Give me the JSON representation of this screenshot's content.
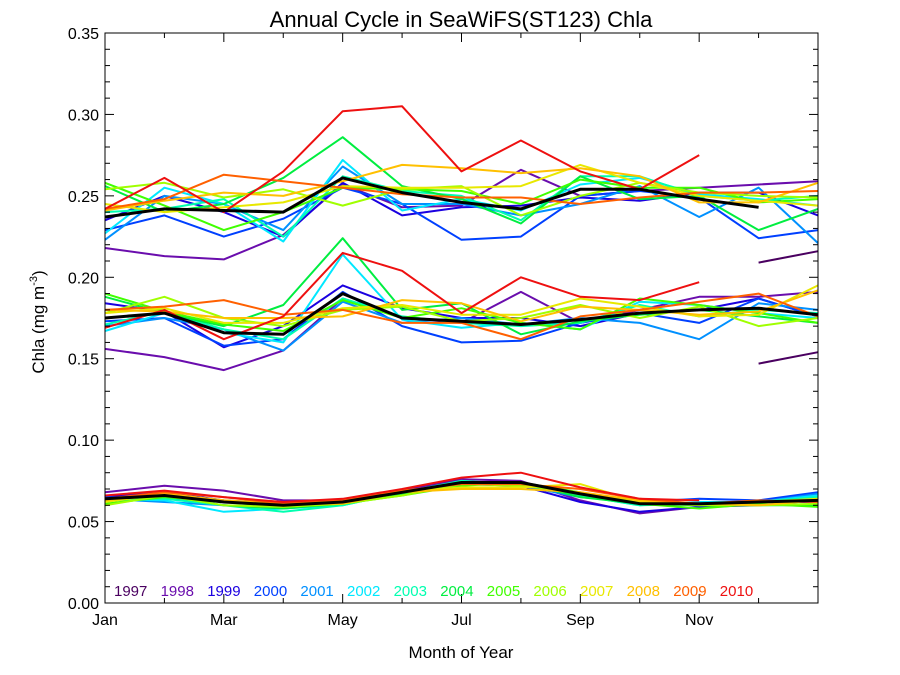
{
  "chart_data": {
    "type": "line",
    "title": "Annual Cycle in SeaWiFS(ST123) Chla",
    "xlabel": "Month of Year",
    "ylabel_main": "Chla (mg m",
    "ylabel_sup": "-3",
    "ylabel_close": ")",
    "xlim": [
      1,
      13
    ],
    "ylim": [
      0,
      0.35
    ],
    "xtick_values": [
      1,
      3,
      5,
      7,
      9,
      11
    ],
    "xtick_labels": [
      "Jan",
      "Mar",
      "May",
      "Jul",
      "Sep",
      "Nov"
    ],
    "ytick_values": [
      0,
      0.05,
      0.1,
      0.15,
      0.2,
      0.25,
      0.3,
      0.35
    ],
    "ytick_labels": [
      "0.00",
      "0.05",
      "0.10",
      "0.15",
      "0.20",
      "0.25",
      "0.30",
      "0.35"
    ],
    "grid": false,
    "legend_position": "bottom",
    "series": [
      {
        "name": "1997",
        "color": "#4a0060",
        "groups": [
          [
            null,
            null,
            null,
            null,
            null,
            null,
            null,
            null,
            null,
            null,
            null,
            0.209,
            0.216
          ],
          [
            null,
            null,
            null,
            null,
            null,
            null,
            null,
            null,
            null,
            null,
            null,
            0.147,
            0.154
          ],
          [
            null,
            null,
            null,
            null,
            null,
            null,
            null,
            null,
            null,
            null,
            null,
            0.063,
            0.063
          ]
        ]
      },
      {
        "name": "1998",
        "color": "#6a0dad",
        "groups": [
          [
            0.218,
            0.213,
            0.211,
            0.226,
            0.257,
            0.243,
            0.244,
            0.266,
            0.25,
            0.253,
            0.255,
            0.257,
            0.259
          ],
          [
            0.156,
            0.151,
            0.143,
            0.155,
            0.187,
            0.175,
            0.172,
            0.191,
            0.172,
            0.18,
            0.188,
            0.188,
            0.191
          ],
          [
            0.068,
            0.072,
            0.069,
            0.063,
            0.063,
            0.069,
            0.076,
            0.075,
            0.063,
            0.055,
            0.059,
            0.062,
            0.062
          ]
        ]
      },
      {
        "name": "1999",
        "color": "#1a00e0",
        "groups": [
          [
            0.235,
            0.25,
            0.24,
            0.225,
            0.258,
            0.238,
            0.243,
            0.244,
            0.249,
            0.247,
            0.252,
            0.252,
            0.238
          ],
          [
            0.184,
            0.179,
            0.157,
            0.17,
            0.195,
            0.181,
            0.175,
            0.175,
            0.17,
            0.178,
            0.18,
            0.187,
            0.176
          ],
          [
            0.065,
            0.068,
            0.063,
            0.06,
            0.063,
            0.068,
            0.073,
            0.072,
            0.062,
            0.056,
            0.059,
            0.06,
            0.063
          ]
        ]
      },
      {
        "name": "2000",
        "color": "#0040ff",
        "groups": [
          [
            0.229,
            0.238,
            0.225,
            0.236,
            0.255,
            0.245,
            0.223,
            0.225,
            0.25,
            0.253,
            0.249,
            0.224,
            0.229
          ],
          [
            0.173,
            0.175,
            0.158,
            0.162,
            0.191,
            0.17,
            0.16,
            0.161,
            0.172,
            0.178,
            0.172,
            0.187,
            0.176
          ],
          [
            0.065,
            0.064,
            0.063,
            0.061,
            0.062,
            0.068,
            0.075,
            0.072,
            0.066,
            0.062,
            0.064,
            0.063,
            0.068
          ]
        ]
      },
      {
        "name": "2001",
        "color": "#0090ff",
        "groups": [
          [
            0.223,
            0.25,
            0.245,
            0.229,
            0.268,
            0.245,
            0.245,
            0.238,
            0.245,
            0.256,
            0.237,
            0.255,
            0.221
          ],
          [
            0.17,
            0.175,
            0.168,
            0.155,
            0.185,
            0.172,
            0.175,
            0.171,
            0.175,
            0.172,
            0.162,
            0.184,
            0.18
          ],
          [
            0.064,
            0.062,
            0.06,
            0.058,
            0.061,
            0.068,
            0.074,
            0.072,
            0.065,
            0.062,
            0.06,
            0.062,
            0.067
          ]
        ]
      },
      {
        "name": "2002",
        "color": "#00e8ff",
        "groups": [
          [
            0.227,
            0.255,
            0.245,
            0.222,
            0.272,
            0.241,
            0.248,
            0.241,
            0.257,
            0.261,
            0.251,
            0.248,
            0.244
          ],
          [
            0.167,
            0.178,
            0.166,
            0.16,
            0.214,
            0.174,
            0.169,
            0.172,
            0.168,
            0.185,
            0.183,
            0.178,
            0.175
          ],
          [
            0.064,
            0.063,
            0.056,
            0.058,
            0.06,
            0.068,
            0.074,
            0.074,
            0.066,
            0.06,
            0.062,
            0.062,
            0.066
          ]
        ]
      },
      {
        "name": "2003",
        "color": "#00ffb0",
        "groups": [
          [
            0.24,
            0.242,
            0.248,
            0.225,
            0.262,
            0.253,
            0.25,
            0.235,
            0.262,
            0.262,
            0.25,
            0.247,
            0.25
          ],
          [
            0.171,
            0.179,
            0.168,
            0.162,
            0.187,
            0.176,
            0.172,
            0.17,
            0.172,
            0.183,
            0.176,
            0.18,
            0.178
          ],
          [
            0.063,
            0.064,
            0.06,
            0.056,
            0.06,
            0.068,
            0.075,
            0.073,
            0.066,
            0.06,
            0.061,
            0.062,
            0.065
          ]
        ]
      },
      {
        "name": "2004",
        "color": "#00ee40",
        "groups": [
          [
            0.256,
            0.24,
            0.245,
            0.261,
            0.286,
            0.256,
            0.248,
            0.233,
            0.262,
            0.248,
            0.25,
            0.229,
            0.242
          ],
          [
            0.188,
            0.178,
            0.17,
            0.183,
            0.224,
            0.18,
            0.184,
            0.165,
            0.173,
            0.177,
            0.18,
            0.176,
            0.172
          ],
          [
            0.063,
            0.066,
            0.06,
            0.058,
            0.061,
            0.067,
            0.074,
            0.074,
            0.065,
            0.061,
            0.06,
            0.06,
            0.06
          ]
        ]
      },
      {
        "name": "2005",
        "color": "#40ff00",
        "groups": [
          [
            0.258,
            0.244,
            0.229,
            0.24,
            0.255,
            0.254,
            0.253,
            0.245,
            0.26,
            0.255,
            0.255,
            0.246,
            0.248
          ],
          [
            0.19,
            0.179,
            0.171,
            0.167,
            0.186,
            0.175,
            0.181,
            0.172,
            0.168,
            0.187,
            0.183,
            0.178,
            0.172
          ],
          [
            0.061,
            0.065,
            0.062,
            0.059,
            0.061,
            0.066,
            0.072,
            0.074,
            0.068,
            0.061,
            0.058,
            0.061,
            0.059
          ]
        ]
      },
      {
        "name": "2006",
        "color": "#a0ff00",
        "groups": [
          [
            0.254,
            0.258,
            0.249,
            0.254,
            0.244,
            0.254,
            0.256,
            0.238,
            0.25,
            0.258,
            0.252,
            0.25,
            0.249
          ],
          [
            0.178,
            0.188,
            0.175,
            0.17,
            0.18,
            0.182,
            0.173,
            0.175,
            0.183,
            0.175,
            0.182,
            0.17,
            0.175
          ],
          [
            0.06,
            0.066,
            0.06,
            0.059,
            0.061,
            0.066,
            0.073,
            0.072,
            0.068,
            0.062,
            0.06,
            0.06,
            0.061
          ]
        ]
      },
      {
        "name": "2007",
        "color": "#e8e800",
        "groups": [
          [
            0.245,
            0.24,
            0.243,
            0.246,
            0.256,
            0.255,
            0.255,
            0.256,
            0.269,
            0.258,
            0.25,
            0.247,
            0.244
          ],
          [
            0.178,
            0.181,
            0.172,
            0.172,
            0.181,
            0.183,
            0.177,
            0.177,
            0.187,
            0.182,
            0.176,
            0.177,
            0.195
          ],
          [
            0.062,
            0.067,
            0.063,
            0.06,
            0.063,
            0.068,
            0.071,
            0.071,
            0.073,
            0.062,
            0.061,
            0.062,
            0.064
          ]
        ]
      },
      {
        "name": "2008",
        "color": "#ffc000",
        "groups": [
          [
            0.241,
            0.247,
            0.252,
            0.25,
            0.259,
            0.269,
            0.267,
            0.264,
            0.267,
            0.262,
            0.246,
            0.246,
            0.258
          ],
          [
            0.18,
            0.179,
            0.175,
            0.175,
            0.176,
            0.186,
            0.184,
            0.173,
            0.182,
            0.18,
            0.177,
            0.179,
            0.192
          ],
          [
            0.063,
            0.067,
            0.063,
            0.061,
            0.061,
            0.068,
            0.07,
            0.07,
            0.068,
            0.063,
            0.061,
            0.06,
            0.063
          ]
        ]
      },
      {
        "name": "2009",
        "color": "#ff6000",
        "groups": [
          [
            0.242,
            0.248,
            0.263,
            0.259,
            0.255,
            0.251,
            0.249,
            0.249,
            0.245,
            0.249,
            0.252,
            0.252,
            0.253
          ],
          [
            0.18,
            0.182,
            0.186,
            0.177,
            0.18,
            0.172,
            0.172,
            0.162,
            0.176,
            0.18,
            0.185,
            0.19,
            0.176
          ],
          [
            0.064,
            0.068,
            0.065,
            0.061,
            0.063,
            0.069,
            0.073,
            0.073,
            0.07,
            0.064,
            0.061,
            0.063,
            0.062
          ]
        ]
      },
      {
        "name": "2010",
        "color": "#ee1010",
        "groups": [
          [
            0.242,
            0.261,
            0.24,
            0.265,
            0.302,
            0.305,
            0.265,
            0.284,
            0.265,
            0.254,
            0.275,
            null,
            null
          ],
          [
            0.169,
            0.18,
            0.162,
            0.176,
            0.215,
            0.204,
            0.178,
            0.2,
            0.188,
            0.186,
            0.197,
            null,
            null
          ],
          [
            0.066,
            0.069,
            0.065,
            0.062,
            0.064,
            0.07,
            0.077,
            0.08,
            0.071,
            0.064,
            0.063,
            null,
            null
          ]
        ]
      }
    ],
    "mean_series": {
      "color": "#000000",
      "groups": [
        [
          0.237,
          0.242,
          0.241,
          0.24,
          0.261,
          0.252,
          0.246,
          0.242,
          0.254,
          0.254,
          0.248,
          0.243,
          null
        ],
        [
          0.175,
          0.178,
          0.166,
          0.165,
          0.19,
          0.175,
          0.173,
          0.171,
          0.174,
          0.178,
          0.18,
          0.181,
          0.177
        ],
        [
          0.064,
          0.066,
          0.062,
          0.06,
          0.062,
          0.068,
          0.074,
          0.074,
          0.067,
          0.061,
          0.061,
          0.062,
          0.063
        ]
      ]
    }
  }
}
